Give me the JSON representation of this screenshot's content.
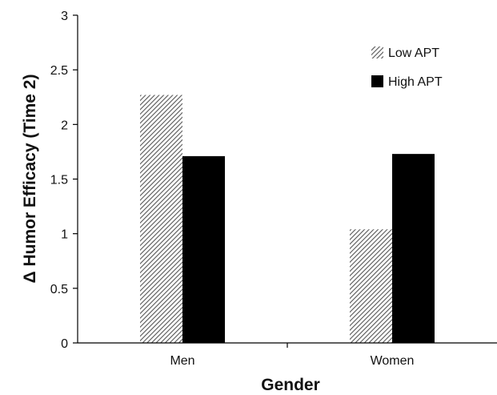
{
  "chart_data": {
    "type": "bar",
    "title": "",
    "xlabel": "Gender",
    "ylabel": "Δ Humor Efficacy (Time 2)",
    "categories": [
      "Men",
      "Women"
    ],
    "series": [
      {
        "name": "Low APT",
        "values": [
          2.27,
          1.04
        ],
        "fill": "hatch",
        "color": "#555555"
      },
      {
        "name": "High APT",
        "values": [
          1.71,
          1.73
        ],
        "fill": "solid",
        "color": "#000000"
      }
    ],
    "ylim": [
      0,
      3
    ],
    "yticks": [
      "0",
      "0.5",
      "1",
      "1.5",
      "2",
      "2.5",
      "3"
    ],
    "ytick_values": [
      0,
      0.5,
      1,
      1.5,
      2,
      2.5,
      3
    ],
    "grid": false,
    "legend": "top-right"
  }
}
